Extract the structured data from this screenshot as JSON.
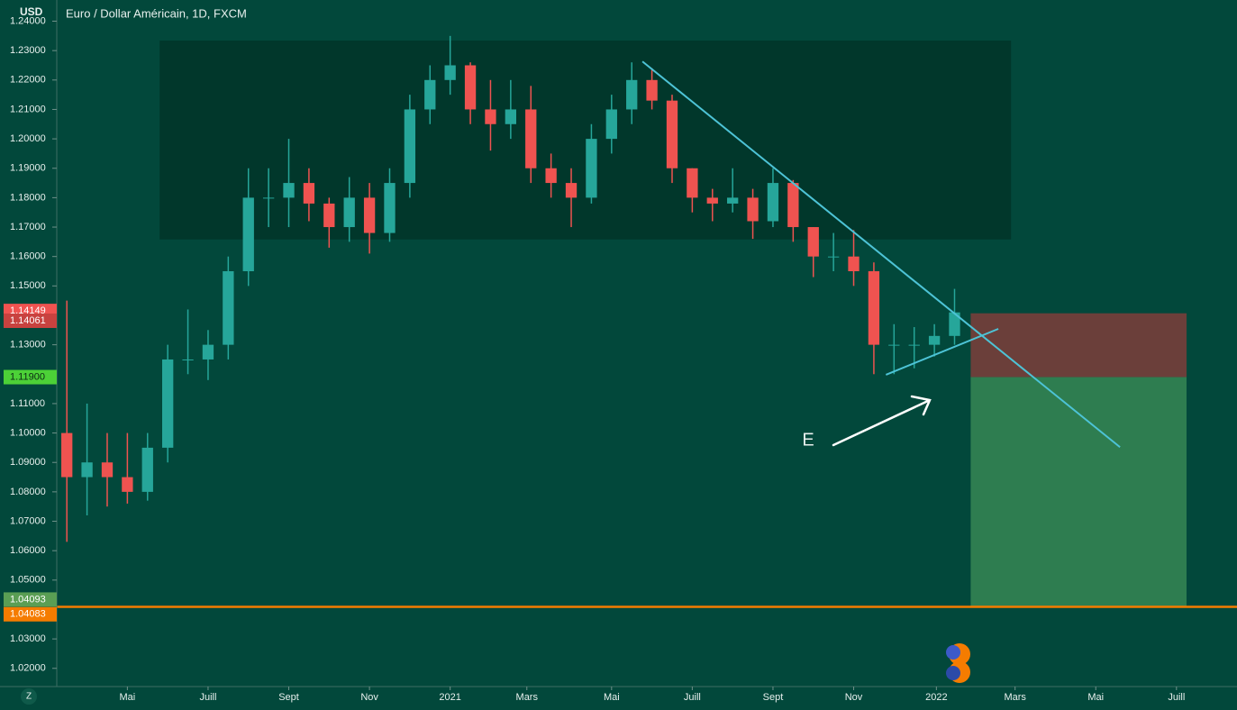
{
  "chart_data": {
    "type": "candlestick",
    "axis_unit": "USD",
    "title": "Euro / Dollar Américain, 1D, FXCM",
    "annotation": "E",
    "up_color": "#26a69a",
    "down_color": "#ef5350",
    "xlim": [
      -0.5,
      58
    ],
    "ylim": [
      1.0138,
      1.2472
    ],
    "xticks": [
      {
        "value": 3,
        "label": "Mai"
      },
      {
        "value": 7,
        "label": "Juill"
      },
      {
        "value": 11,
        "label": "Sept"
      },
      {
        "value": 15,
        "label": "Nov"
      },
      {
        "value": 19,
        "label": "2021"
      },
      {
        "value": 22.8,
        "label": "Mars"
      },
      {
        "value": 27,
        "label": "Mai"
      },
      {
        "value": 31,
        "label": "Juill"
      },
      {
        "value": 35,
        "label": "Sept"
      },
      {
        "value": 39,
        "label": "Nov"
      },
      {
        "value": 43.1,
        "label": "2022"
      },
      {
        "value": 47,
        "label": "Mars"
      },
      {
        "value": 51,
        "label": "Mai"
      },
      {
        "value": 55,
        "label": "Juill"
      }
    ],
    "yticks": [
      {
        "value": 1.24,
        "label": "1.24000"
      },
      {
        "value": 1.23,
        "label": "1.23000"
      },
      {
        "value": 1.22,
        "label": "1.22000"
      },
      {
        "value": 1.21,
        "label": "1.21000"
      },
      {
        "value": 1.2,
        "label": "1.20000"
      },
      {
        "value": 1.19,
        "label": "1.19000"
      },
      {
        "value": 1.18,
        "label": "1.18000"
      },
      {
        "value": 1.17,
        "label": "1.17000"
      },
      {
        "value": 1.16,
        "label": "1.16000"
      },
      {
        "value": 1.15,
        "label": "1.15000"
      },
      {
        "value": 1.13,
        "label": "1.13000"
      },
      {
        "value": 1.11,
        "label": "1.11000"
      },
      {
        "value": 1.1,
        "label": "1.10000"
      },
      {
        "value": 1.09,
        "label": "1.09000"
      },
      {
        "value": 1.08,
        "label": "1.08000"
      },
      {
        "value": 1.07,
        "label": "1.07000"
      },
      {
        "value": 1.06,
        "label": "1.06000"
      },
      {
        "value": 1.05,
        "label": "1.05000"
      },
      {
        "value": 1.03,
        "label": "1.03000"
      },
      {
        "value": 1.02,
        "label": "1.02000"
      }
    ],
    "open": [
      1.1,
      1.085,
      1.09,
      1.085,
      1.08,
      1.095,
      1.125,
      1.125,
      1.13,
      1.155,
      1.18,
      1.18,
      1.185,
      1.178,
      1.17,
      1.18,
      1.168,
      1.185,
      1.21,
      1.22,
      1.225,
      1.21,
      1.205,
      1.21,
      1.19,
      1.185,
      1.18,
      1.2,
      1.21,
      1.22,
      1.213,
      1.19,
      1.18,
      1.178,
      1.18,
      1.172,
      1.185,
      1.17,
      1.16,
      1.16,
      1.155,
      1.13,
      1.13,
      1.13,
      1.133
    ],
    "high": [
      1.145,
      1.11,
      1.1,
      1.1,
      1.1,
      1.13,
      1.142,
      1.135,
      1.16,
      1.19,
      1.19,
      1.2,
      1.19,
      1.18,
      1.187,
      1.185,
      1.19,
      1.215,
      1.225,
      1.235,
      1.226,
      1.22,
      1.22,
      1.218,
      1.195,
      1.19,
      1.205,
      1.215,
      1.226,
      1.224,
      1.215,
      1.19,
      1.183,
      1.19,
      1.183,
      1.19,
      1.186,
      1.17,
      1.168,
      1.169,
      1.158,
      1.137,
      1.136,
      1.137,
      1.149
    ],
    "low": [
      1.063,
      1.072,
      1.075,
      1.076,
      1.077,
      1.09,
      1.12,
      1.118,
      1.125,
      1.15,
      1.17,
      1.17,
      1.172,
      1.163,
      1.165,
      1.161,
      1.165,
      1.18,
      1.205,
      1.215,
      1.205,
      1.196,
      1.2,
      1.185,
      1.18,
      1.17,
      1.178,
      1.195,
      1.205,
      1.21,
      1.185,
      1.175,
      1.172,
      1.175,
      1.166,
      1.17,
      1.165,
      1.153,
      1.155,
      1.15,
      1.12,
      1.12,
      1.122,
      1.126,
      1.13
    ],
    "close": [
      1.085,
      1.09,
      1.085,
      1.08,
      1.095,
      1.125,
      1.125,
      1.13,
      1.155,
      1.18,
      1.18,
      1.185,
      1.178,
      1.17,
      1.18,
      1.168,
      1.185,
      1.21,
      1.22,
      1.225,
      1.21,
      1.205,
      1.21,
      1.19,
      1.185,
      1.18,
      1.2,
      1.21,
      1.22,
      1.213,
      1.19,
      1.18,
      1.178,
      1.18,
      1.172,
      1.185,
      1.17,
      1.16,
      1.16,
      1.155,
      1.13,
      1.13,
      1.13,
      1.133,
      1.141
    ],
    "zones": [
      {
        "x": [
          4.6,
          46.8
        ],
        "y": [
          1.1658,
          1.2334
        ],
        "color": "#01372b"
      },
      {
        "x": [
          44.8,
          55.5
        ],
        "y": [
          1.119,
          1.1407
        ],
        "color": "#6b3f3a"
      },
      {
        "x": [
          44.8,
          55.5
        ],
        "y": [
          1.0412,
          1.119
        ],
        "color": "#2e7d50"
      }
    ],
    "lines": [
      {
        "x": [
          28.53,
          52.2
        ],
        "y": [
          1.2263,
          1.0952
        ],
        "color": "#4dc3d6"
      },
      {
        "x": [
          40.6,
          46.17
        ],
        "y": [
          1.1198,
          1.1354
        ],
        "color": "#4dc3d6"
      }
    ],
    "hline": {
      "value": 1.0409,
      "color": "#f57c00"
    },
    "price_tags": [
      {
        "value": 1.14149,
        "label": "1.14149",
        "color": "#ef5350"
      },
      {
        "value": 1.14061,
        "label": "1.14061",
        "color": "#c8423f"
      },
      {
        "value": 1.119,
        "label": "1.11900",
        "color": "#4cd137"
      },
      {
        "value": 1.04093,
        "label": "1.04093",
        "color": "#5a9e54"
      },
      {
        "value": 1.04083,
        "label": "1.04083",
        "color": "#f57c00"
      }
    ]
  }
}
